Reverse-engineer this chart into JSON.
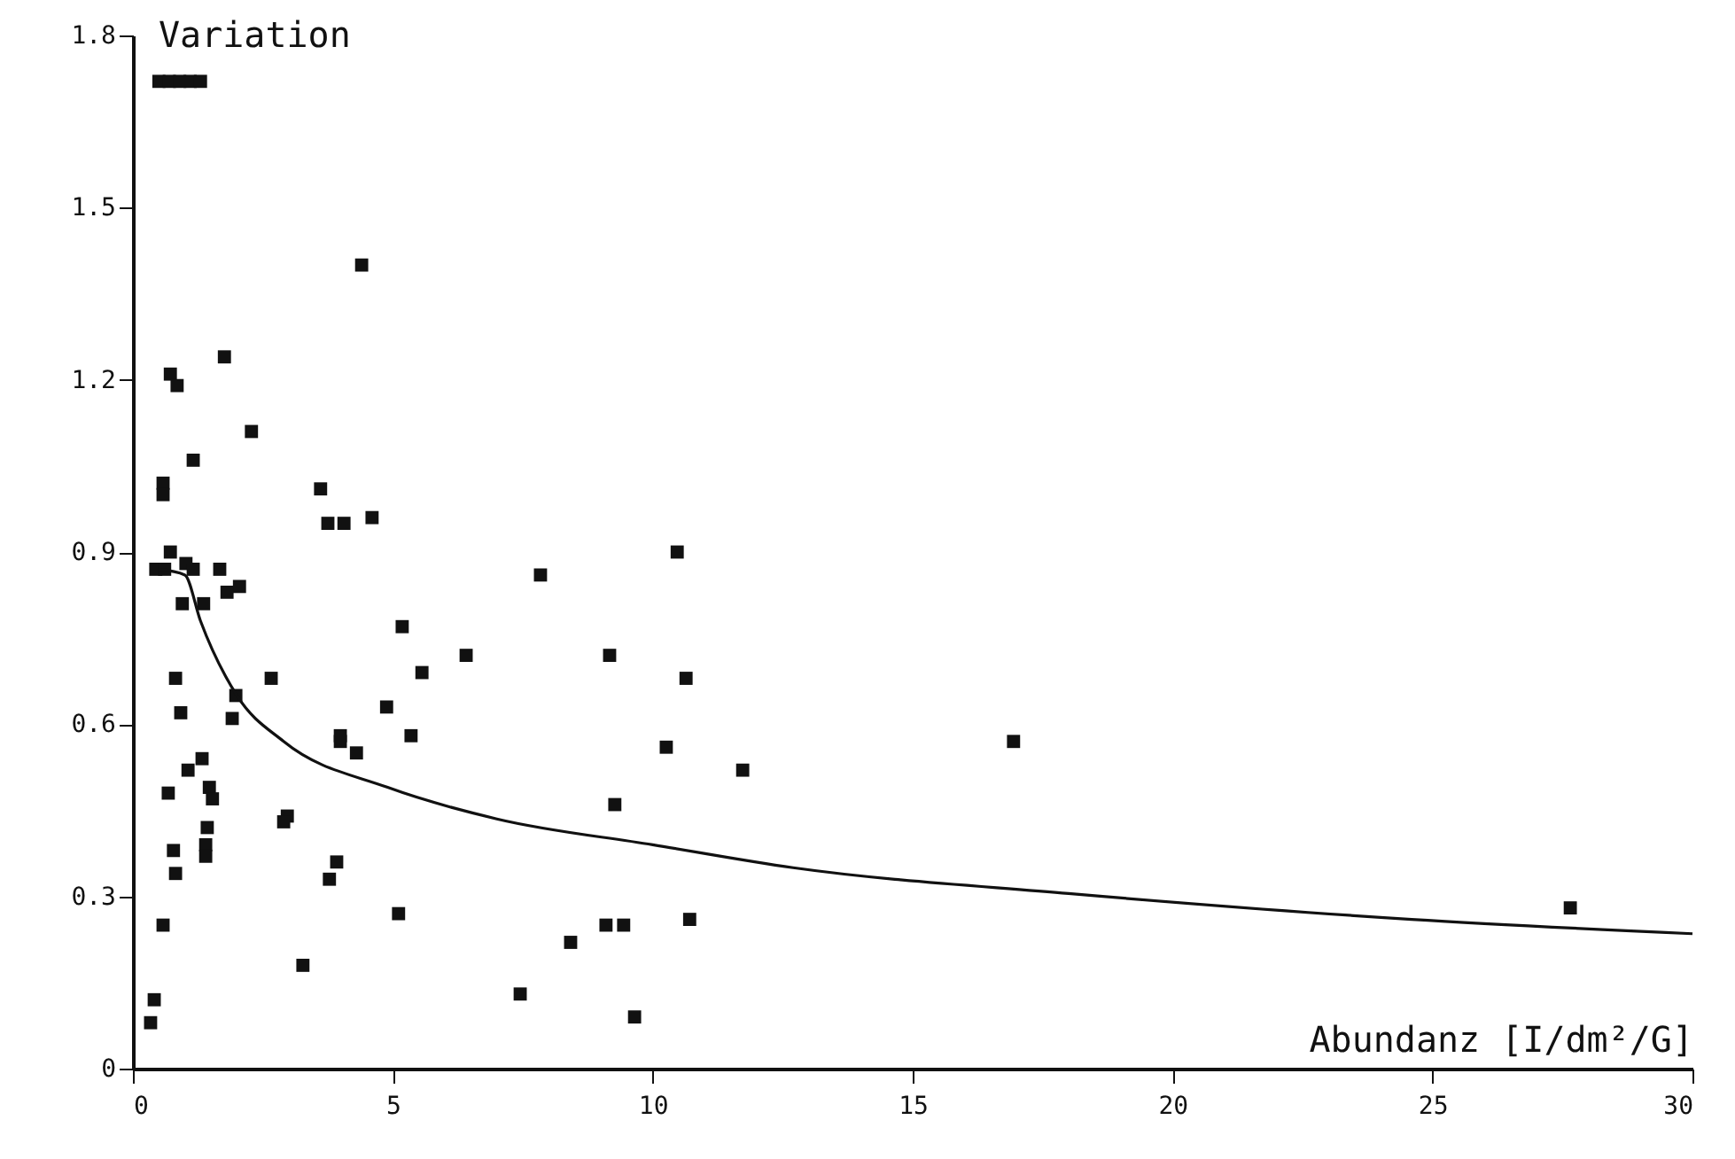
{
  "chart_data": {
    "type": "scatter",
    "xlabel": "Abundanz [I/dm²/G]",
    "ylabel": "Variation",
    "xlim": [
      0,
      30
    ],
    "xticks": [
      0,
      5,
      10,
      15,
      20,
      25,
      30
    ],
    "ylim": [
      0,
      1.8
    ],
    "yticks": [
      0,
      0.3,
      0.6,
      0.9,
      1.2,
      1.5,
      1.8
    ],
    "grid": false,
    "marker": "square",
    "series": [
      {
        "type": "scatter",
        "color": "#111111",
        "x": [
          0.5,
          0.7,
          0.9,
          1.1,
          1.3,
          4.4,
          1.76,
          0.72,
          0.85,
          2.28,
          1.16,
          0.58,
          0.58,
          3.61,
          3.75,
          4.06,
          4.6,
          0.72,
          0.44,
          0.61,
          1.02,
          1.16,
          1.67,
          2.05,
          1.81,
          0.95,
          1.36,
          5.18,
          6.41,
          5.56,
          0.82,
          2.66,
          4.88,
          0.92,
          1.98,
          1.91,
          3.99,
          3.99,
          5.35,
          4.3,
          1.33,
          1.06,
          1.47,
          1.53,
          0.68,
          2.97,
          2.9,
          1.43,
          1.4,
          1.4,
          0.78,
          0.82,
          3.92,
          3.78,
          5.11,
          0.58,
          3.27,
          7.45,
          0.41,
          0.34,
          10.47,
          7.84,
          9.17,
          10.64,
          16.94,
          10.26,
          11.73,
          9.27,
          10.71,
          9.1,
          9.44,
          8.42,
          9.65,
          27.65
        ],
        "values": [
          1.72,
          1.72,
          1.72,
          1.72,
          1.72,
          1.4,
          1.24,
          1.21,
          1.19,
          1.11,
          1.06,
          1.02,
          1.0,
          1.01,
          0.95,
          0.95,
          0.96,
          0.9,
          0.87,
          0.87,
          0.88,
          0.87,
          0.87,
          0.84,
          0.83,
          0.81,
          0.81,
          0.77,
          0.72,
          0.69,
          0.68,
          0.68,
          0.63,
          0.62,
          0.65,
          0.61,
          0.58,
          0.57,
          0.58,
          0.55,
          0.54,
          0.52,
          0.49,
          0.47,
          0.48,
          0.44,
          0.43,
          0.42,
          0.39,
          0.37,
          0.38,
          0.34,
          0.36,
          0.33,
          0.27,
          0.25,
          0.18,
          0.13,
          0.12,
          0.08,
          0.9,
          0.86,
          0.72,
          0.68,
          0.57,
          0.56,
          0.52,
          0.46,
          0.26,
          0.25,
          0.25,
          0.22,
          0.09,
          0.28
        ]
      },
      {
        "type": "line",
        "color": "#111111",
        "marker": "none",
        "x": [
          0.5,
          1.0,
          1.3,
          2.0,
          2.9,
          4.9,
          7.0,
          10.0,
          12.7,
          18.0,
          24.6,
          30.0
        ],
        "values": [
          0.87,
          0.86,
          0.78,
          0.65,
          0.57,
          0.49,
          0.435,
          0.39,
          0.35,
          0.305,
          0.26,
          0.235
        ]
      }
    ]
  }
}
